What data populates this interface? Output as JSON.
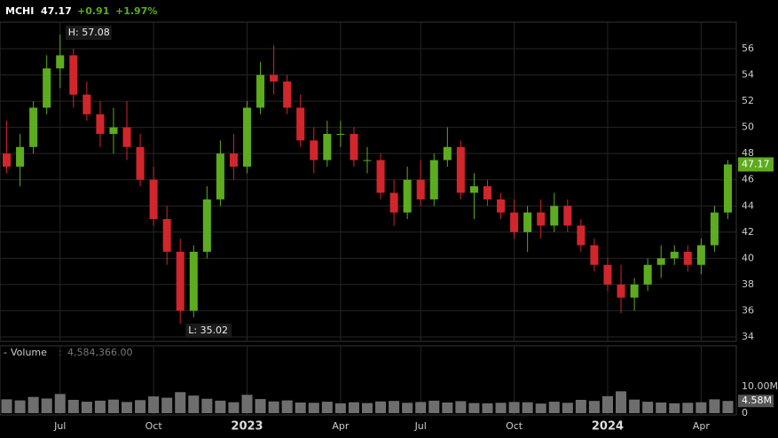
{
  "chart_data": {
    "type": "candlestick",
    "header": {
      "symbol": "MCHI",
      "change": "+0.91",
      "change_pct": "+1.97%"
    },
    "last_tag": {
      "value": 47.17,
      "label": "47.17"
    },
    "categories": [
      null,
      null,
      null,
      null,
      "Jul",
      null,
      null,
      null,
      null,
      null,
      null,
      "Oct",
      null,
      null,
      null,
      null,
      null,
      null,
      "2023",
      null,
      null,
      null,
      null,
      null,
      null,
      "Apr",
      null,
      null,
      null,
      null,
      null,
      "Jul",
      null,
      null,
      null,
      null,
      null,
      null,
      "Oct",
      null,
      null,
      null,
      null,
      null,
      null,
      "2024",
      null,
      null,
      null,
      null,
      null,
      null,
      "Apr",
      null,
      null
    ],
    "open": [
      48,
      47,
      48.5,
      51.5,
      54.5,
      55.5,
      52.5,
      51,
      49.5,
      50,
      48.5,
      46,
      43,
      40.5,
      36,
      40.5,
      44.5,
      48,
      47,
      51.5,
      54,
      53.5,
      51.5,
      49,
      47.5,
      49.5,
      49.5,
      47.5,
      47.5,
      45,
      43.5,
      46,
      44.5,
      47.5,
      48.5,
      45,
      45.5,
      44.5,
      43.5,
      42,
      43.5,
      42.5,
      44,
      42.5,
      41,
      39.5,
      38,
      37,
      38,
      39.5,
      40,
      40.5,
      39.5,
      41,
      43.5
    ],
    "high": [
      50.5,
      49.5,
      52,
      55.5,
      57.08,
      56,
      53.5,
      52,
      51.5,
      52,
      49.5,
      47,
      44,
      41.5,
      41,
      45.5,
      49,
      49.5,
      52,
      55,
      56.3,
      54,
      52.5,
      50,
      50.5,
      50.5,
      50,
      48.5,
      48,
      46,
      47,
      47.5,
      48,
      50,
      49,
      46.5,
      46,
      45,
      44.5,
      44,
      44.5,
      45,
      44.5,
      43,
      41.5,
      40,
      39.5,
      38.5,
      40,
      41,
      41,
      41,
      41.5,
      44,
      47.5
    ],
    "low": [
      46.5,
      45.5,
      48,
      51,
      53,
      51.5,
      50.5,
      48.5,
      48,
      47.5,
      45.5,
      42.5,
      39.5,
      35.02,
      35.5,
      40,
      44,
      46,
      46.5,
      51,
      52.5,
      51,
      48.5,
      46.5,
      47,
      48.5,
      47,
      46.5,
      44.5,
      42.5,
      43,
      44,
      44,
      47,
      44.5,
      43,
      44,
      43,
      41.5,
      40.5,
      41.5,
      42,
      42,
      40.5,
      39,
      37.5,
      35.8,
      36,
      37.5,
      38.5,
      39.5,
      39,
      38.8,
      40.5,
      43
    ],
    "close": [
      47,
      48.5,
      51.5,
      54.5,
      55.5,
      52.5,
      51,
      49.5,
      50,
      48.5,
      46,
      43,
      40.5,
      36,
      40.5,
      44.5,
      48,
      47,
      51.5,
      54,
      53.5,
      51.5,
      49,
      47.5,
      49.5,
      49.5,
      47.5,
      47.5,
      45,
      43.5,
      46,
      44.5,
      47.5,
      48.5,
      45,
      45.5,
      44.5,
      43.5,
      42,
      43.5,
      42.5,
      44,
      42.5,
      41,
      39.5,
      38,
      37,
      38,
      39.5,
      40,
      40.5,
      39.5,
      41,
      43.5,
      47.17
    ],
    "up_color": "#5dab1f",
    "down_color": "#d0262c",
    "annotations": {
      "high": "H: 57.08",
      "low": "L: 35.02"
    },
    "ylim": [
      33.66,
      58.03
    ],
    "yticks": [
      34,
      36,
      38,
      40,
      42,
      44,
      46,
      48,
      50,
      52,
      54,
      56
    ],
    "grid": true,
    "volume": {
      "label": "Volume",
      "current": "4,584,366.00",
      "values": [
        5200000,
        4800000,
        6100000,
        5500000,
        7200000,
        5000000,
        4300000,
        4700000,
        5100000,
        4200000,
        4900000,
        6300000,
        5800000,
        7900000,
        6600000,
        5400000,
        4700000,
        4100000,
        6900000,
        5300000,
        4400000,
        4800000,
        4000000,
        3900000,
        4300000,
        3700000,
        4100000,
        3800000,
        4400000,
        4600000,
        3900000,
        4200000,
        4700000,
        4000000,
        4500000,
        3800000,
        3700000,
        3900000,
        4200000,
        4100000,
        3600000,
        4300000,
        3900000,
        5000000,
        4600000,
        6400000,
        8200000,
        5100000,
        4300000,
        4000000,
        3700000,
        3900000,
        4100000,
        5200000,
        4584366
      ],
      "color": "#6e6e6e",
      "ylim": [
        0,
        20300000
      ],
      "yticks": [
        0,
        {
          "value": 10000000,
          "label": "10.00M"
        }
      ],
      "last_tag": {
        "value": 4584366,
        "label": "4.58M"
      }
    }
  }
}
